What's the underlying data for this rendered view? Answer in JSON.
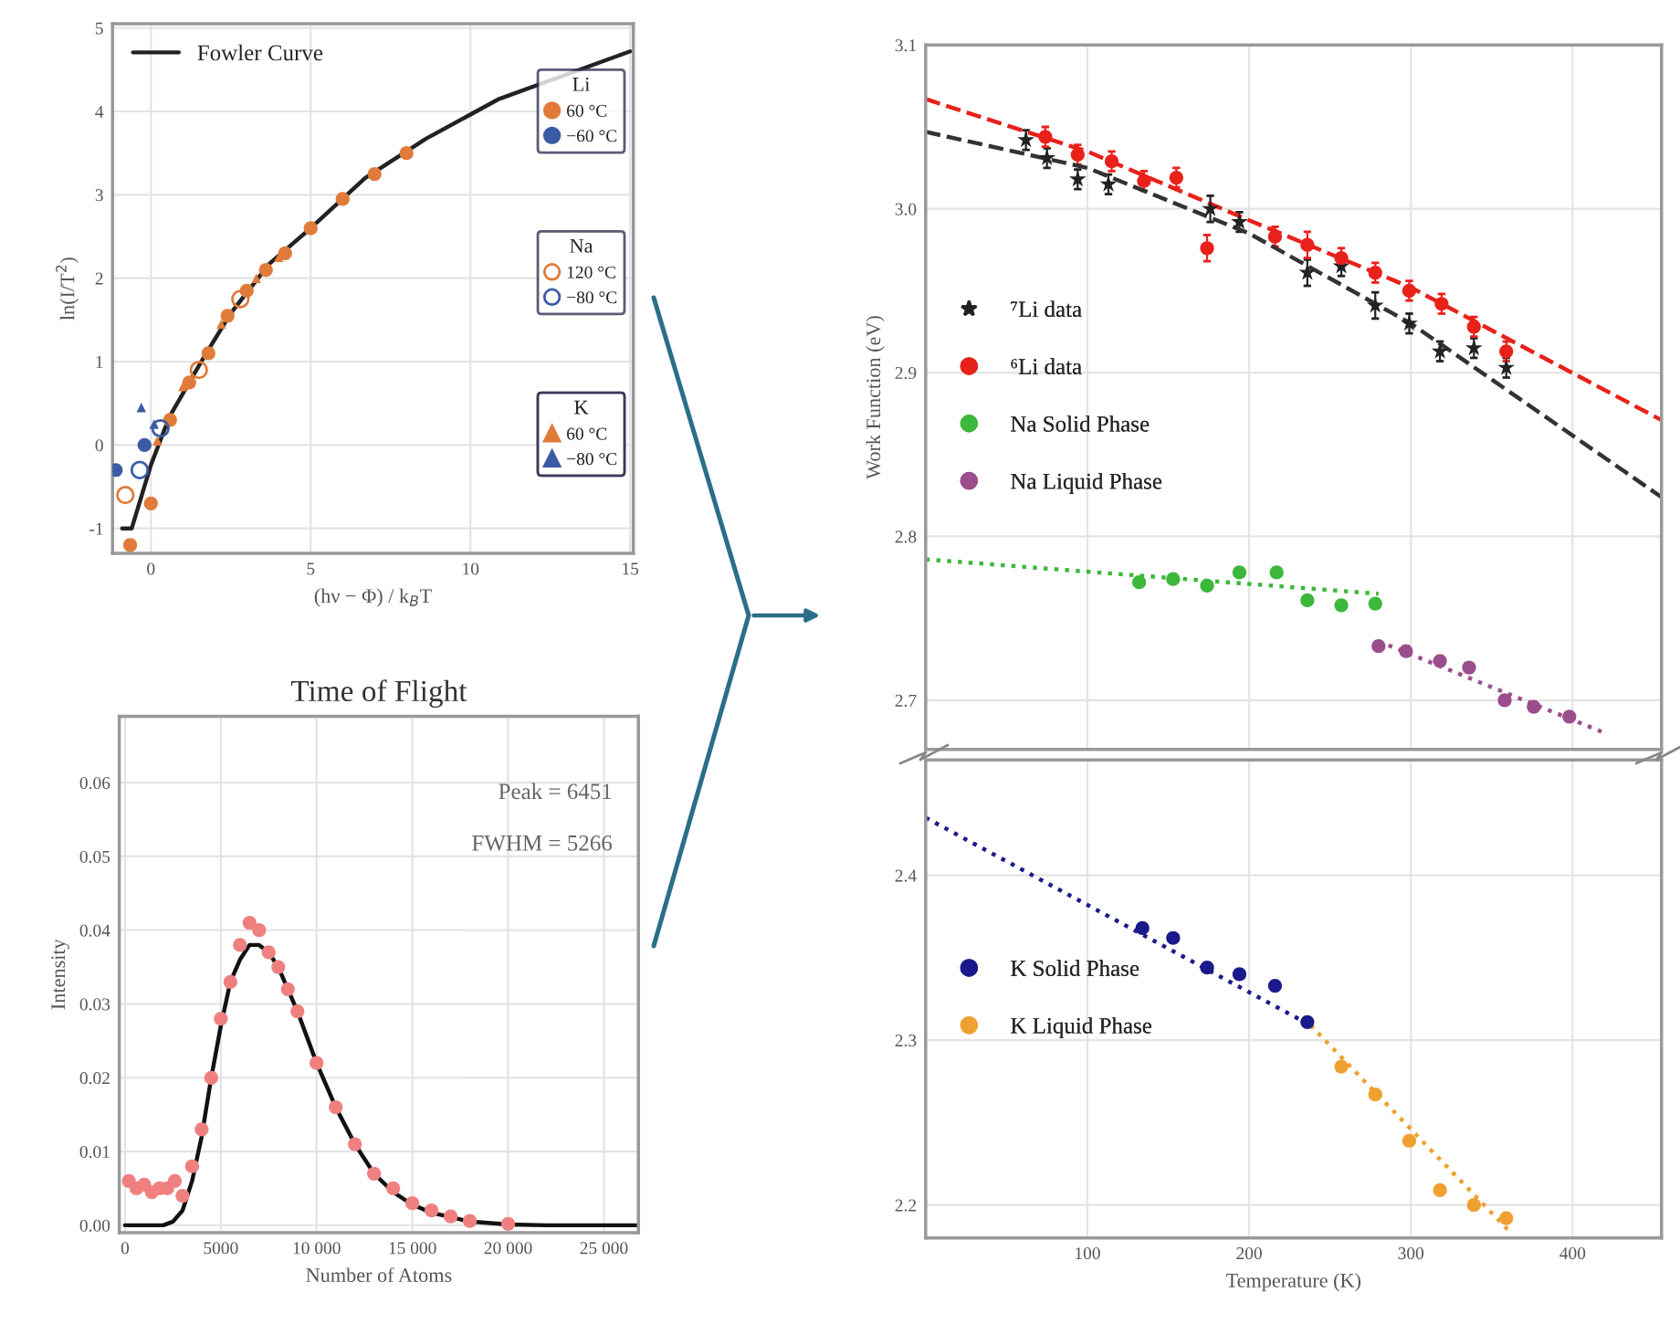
{
  "chart_data": [
    {
      "type": "scatter",
      "xlabel": "(hν − Φ) / k$_{B}$T",
      "ylabel": "ln(I/T$^{2}$)",
      "xlim": [
        -1.2,
        15.1
      ],
      "ylim": [
        -1.3,
        5.05
      ],
      "xticks": [
        0,
        5,
        10,
        15
      ],
      "yticks": [
        -1,
        0,
        1,
        2,
        3,
        4,
        5
      ],
      "grid": true,
      "legend": "top left",
      "annotations": [
        "Li",
        "Na",
        "K"
      ],
      "series": [
        {
          "name": "Fowler Curve",
          "type": "line",
          "color": "#222222",
          "line_style": "solid",
          "marker": "none",
          "x": [
            -0.9,
            -0.6,
            0,
            0.57,
            1.7,
            2.5,
            3.7,
            5,
            6.7,
            8.6,
            10.9,
            15
          ],
          "values": [
            -1.0,
            -1.0,
            -0.24,
            0.33,
            1.08,
            1.58,
            2.17,
            2.6,
            3.2,
            3.67,
            4.15,
            4.72
          ]
        },
        {
          "name": "60 °C",
          "color": "#e07b39",
          "marker": "circle",
          "x": [
            -0.65,
            0.0,
            0.6,
            1.2,
            1.8,
            2.4,
            3.0,
            3.6,
            4.2,
            5.0,
            6.0,
            7.0,
            8.0
          ],
          "values": [
            -1.2,
            -0.7,
            0.3,
            0.75,
            1.1,
            1.55,
            1.85,
            2.1,
            2.3,
            2.6,
            2.95,
            3.25,
            3.5
          ]
        },
        {
          "name": "−60 °C",
          "color": "#3b5ba5",
          "marker": "circle",
          "x": [
            -1.1,
            -0.2
          ],
          "values": [
            -0.3,
            0.0
          ]
        },
        {
          "name": "120 °C",
          "color": "#e07b39",
          "marker": "circle-open",
          "x": [
            -0.8,
            1.5,
            2.8
          ],
          "values": [
            -0.6,
            0.9,
            1.75
          ]
        },
        {
          "name": "−80 °C",
          "color": "#3b5ba5",
          "marker": "circle-open",
          "x": [
            -0.35,
            0.3
          ],
          "values": [
            -0.3,
            0.2
          ]
        },
        {
          "name": "60 °C",
          "color": "#e07b39",
          "marker": "triangle",
          "x": [
            0.2,
            1.0,
            2.2,
            3.3,
            4.0
          ],
          "values": [
            0.05,
            0.7,
            1.45,
            2.0,
            2.25
          ]
        },
        {
          "name": "−80 °C",
          "color": "#3b5ba5",
          "marker": "triangle",
          "x": [
            -0.3,
            0.1
          ],
          "values": [
            0.45,
            0.25
          ]
        }
      ]
    },
    {
      "type": "line",
      "title": "Time of Flight",
      "xlabel": "Number of Atoms",
      "ylabel": "Intensity",
      "xlim": [
        -300,
        26800
      ],
      "ylim": [
        -0.001,
        0.069
      ],
      "xticks": [
        0,
        5000,
        {
          "value": 10000,
          "label": "10 000"
        },
        {
          "value": 15000,
          "label": "15 000"
        },
        {
          "value": 20000,
          "label": "20 000"
        },
        {
          "value": 25000,
          "label": "25 000"
        }
      ],
      "yticks": [
        {
          "value": 0,
          "label": "0.00"
        },
        0.01,
        0.02,
        0.03,
        0.04,
        0.05,
        0.06
      ],
      "grid": true,
      "annotations": [
        "Peak = 6451",
        "FWHM = 5266"
      ],
      "series": [
        {
          "type": "scatter",
          "color": "#f08080",
          "marker": "circle",
          "x": [
            200,
            600,
            1000,
            1400,
            1800,
            2200,
            2600,
            3000,
            3500,
            4000,
            4500,
            5000,
            5500,
            6000,
            6500,
            7000,
            7500,
            8000,
            8500,
            9000,
            10000,
            11000,
            12000,
            13000,
            14000,
            15000,
            16000,
            17000,
            18000,
            20000
          ],
          "values": [
            0.006,
            0.005,
            0.0055,
            0.0045,
            0.005,
            0.005,
            0.006,
            0.004,
            0.008,
            0.013,
            0.02,
            0.028,
            0.033,
            0.038,
            0.041,
            0.04,
            0.037,
            0.035,
            0.032,
            0.029,
            0.022,
            0.016,
            0.011,
            0.007,
            0.005,
            0.003,
            0.002,
            0.0012,
            0.0006,
            0.0002
          ]
        },
        {
          "type": "line",
          "color": "#111111",
          "line_style": "solid",
          "marker": "none",
          "x": [
            0,
            1000,
            2000,
            2500,
            3000,
            3500,
            4000,
            4500,
            5000,
            5500,
            6000,
            6500,
            7000,
            7500,
            8000,
            9000,
            10000,
            11000,
            12000,
            13000,
            14000,
            15000,
            16000,
            18000,
            20000,
            22000,
            26800
          ],
          "values": [
            0,
            0,
            0,
            0.0005,
            0.002,
            0.006,
            0.012,
            0.02,
            0.027,
            0.033,
            0.036,
            0.038,
            0.038,
            0.037,
            0.035,
            0.029,
            0.022,
            0.016,
            0.011,
            0.007,
            0.0045,
            0.0028,
            0.0017,
            0.0005,
            0.0001,
            0,
            0
          ]
        }
      ]
    },
    {
      "type": "scatter",
      "ylabel": "Work Function (eV)",
      "xlim": [
        0,
        455
      ],
      "ylim": [
        2.67,
        3.1
      ],
      "xticks": [
        100,
        200,
        300,
        400
      ],
      "yticks": [
        2.7,
        2.8,
        2.9,
        {
          "value": 3.0,
          "label": "3.0"
        },
        3.1
      ],
      "tick_labels": "y",
      "grid": true,
      "legend": "center left",
      "series": [
        {
          "name": "⁷Li data",
          "color": "#222222",
          "marker": "star",
          "x": [
            62,
            75,
            94,
            113,
            176,
            194,
            236,
            257,
            278,
            299,
            318,
            339,
            359
          ],
          "values": [
            3.042,
            3.031,
            3.018,
            3.015,
            3.0,
            2.992,
            2.961,
            2.965,
            2.941,
            2.93,
            2.913,
            2.915,
            2.903
          ],
          "errors": [
            0.006,
            0.006,
            0.006,
            0.006,
            0.008,
            0.006,
            0.008,
            0.006,
            0.008,
            0.006,
            0.006,
            0.006,
            0.006
          ]
        },
        {
          "name": "⁶Li data",
          "color": "#e8211a",
          "marker": "circle",
          "x": [
            74,
            94,
            115,
            135,
            155,
            174,
            216,
            236,
            257,
            278,
            299,
            319,
            339,
            359
          ],
          "values": [
            3.044,
            3.033,
            3.029,
            3.017,
            3.019,
            2.976,
            2.983,
            2.978,
            2.97,
            2.961,
            2.95,
            2.942,
            2.928,
            2.913
          ],
          "errors": [
            0.006,
            0.006,
            0.006,
            0.006,
            0.006,
            0.008,
            0.006,
            0.008,
            0.006,
            0.006,
            0.006,
            0.006,
            0.006,
            0.006
          ]
        },
        {
          "type": "line",
          "color": "#333333",
          "line_style": "dashed",
          "marker": "none",
          "x": [
            0,
            100,
            200,
            300,
            455
          ],
          "values": [
            3.047,
            3.025,
            2.985,
            2.93,
            2.824
          ]
        },
        {
          "type": "line",
          "color": "#e8211a",
          "line_style": "dashed",
          "marker": "none",
          "x": [
            0,
            100,
            200,
            300,
            455
          ],
          "values": [
            3.067,
            3.035,
            2.993,
            2.952,
            2.871
          ]
        },
        {
          "name": "Na Solid Phase",
          "color": "#3cb83c",
          "marker": "circle",
          "x": [
            132,
            153,
            174,
            194,
            217,
            236,
            257,
            278
          ],
          "values": [
            2.772,
            2.774,
            2.77,
            2.778,
            2.778,
            2.761,
            2.758,
            2.759
          ]
        },
        {
          "name": "Na Liquid Phase",
          "color": "#9a4f8c",
          "marker": "circle",
          "x": [
            280,
            297,
            318,
            336,
            358,
            376,
            398
          ],
          "values": [
            2.733,
            2.73,
            2.724,
            2.72,
            2.7,
            2.696,
            2.69
          ]
        },
        {
          "type": "line",
          "color": "#3cb83c",
          "line_style": "dotted",
          "marker": "none",
          "x": [
            0,
            280
          ],
          "values": [
            2.786,
            2.765
          ]
        },
        {
          "type": "line",
          "color": "#9a4f8c",
          "line_style": "dotted",
          "marker": "none",
          "x": [
            280,
            420
          ],
          "values": [
            2.736,
            2.68
          ]
        }
      ]
    },
    {
      "type": "scatter",
      "xlabel": "Temperature (K)",
      "xlim": [
        0,
        455
      ],
      "ylim": [
        2.18,
        2.47
      ],
      "xticks": [
        100,
        200,
        300,
        400
      ],
      "yticks": [
        2.2,
        2.3,
        2.4
      ],
      "grid": true,
      "legend": "center left",
      "series": [
        {
          "name": "K Solid Phase",
          "color": "#1a1a8c",
          "marker": "circle",
          "x": [
            134,
            153,
            174,
            194,
            216,
            236
          ],
          "values": [
            2.368,
            2.362,
            2.344,
            2.34,
            2.333,
            2.311
          ]
        },
        {
          "name": "K Liquid Phase",
          "color": "#f0a030",
          "marker": "circle",
          "x": [
            257,
            278,
            299,
            318,
            339,
            359
          ],
          "values": [
            2.284,
            2.267,
            2.239,
            2.209,
            2.2,
            2.192
          ]
        },
        {
          "type": "line",
          "color": "#1a1a8c",
          "line_style": "dotted",
          "marker": "none",
          "x": [
            0,
            238
          ],
          "values": [
            2.435,
            2.309
          ]
        },
        {
          "type": "line",
          "color": "#f0a030",
          "line_style": "dotted",
          "marker": "none",
          "x": [
            238,
            360
          ],
          "values": [
            2.309,
            2.185
          ]
        }
      ]
    }
  ]
}
